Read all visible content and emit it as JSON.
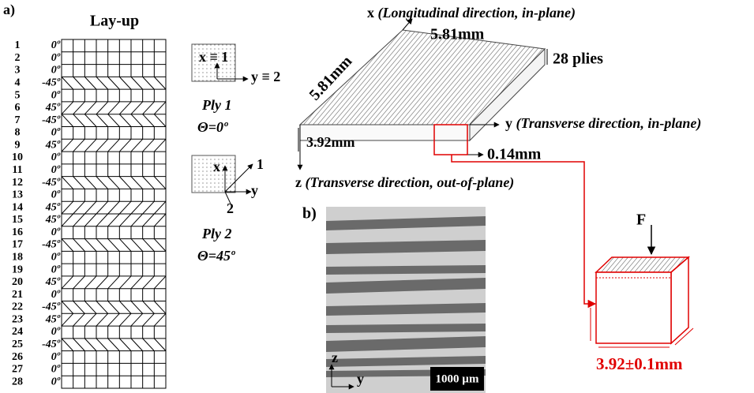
{
  "panel_a": {
    "label": "a)",
    "layup_title": "Lay-up",
    "plies": [
      {
        "number": "1",
        "angle": "0º"
      },
      {
        "number": "2",
        "angle": "0º"
      },
      {
        "number": "3",
        "angle": "0º"
      },
      {
        "number": "4",
        "angle": "-45º"
      },
      {
        "number": "5",
        "angle": "0º"
      },
      {
        "number": "6",
        "angle": "45º"
      },
      {
        "number": "7",
        "angle": "-45º"
      },
      {
        "number": "8",
        "angle": "0º"
      },
      {
        "number": "9",
        "angle": "45º"
      },
      {
        "number": "10",
        "angle": "0º"
      },
      {
        "number": "11",
        "angle": "0º"
      },
      {
        "number": "12",
        "angle": "-45º"
      },
      {
        "number": "13",
        "angle": "0º"
      },
      {
        "number": "14",
        "angle": "45º"
      },
      {
        "number": "15",
        "angle": "45º"
      },
      {
        "number": "16",
        "angle": "0º"
      },
      {
        "number": "17",
        "angle": "-45º"
      },
      {
        "number": "18",
        "angle": "0º"
      },
      {
        "number": "19",
        "angle": "0º"
      },
      {
        "number": "20",
        "angle": "45º"
      },
      {
        "number": "21",
        "angle": "0º"
      },
      {
        "number": "22",
        "angle": "-45º"
      },
      {
        "number": "23",
        "angle": "45º"
      },
      {
        "number": "24",
        "angle": "0º"
      },
      {
        "number": "25",
        "angle": "-45º"
      },
      {
        "number": "26",
        "angle": "0º"
      },
      {
        "number": "27",
        "angle": "0º"
      },
      {
        "number": "28",
        "angle": "0º"
      }
    ],
    "ply1": {
      "x_axis": "x ≡ 1",
      "y_axis": "y ≡ 2",
      "name": "Ply 1",
      "angle": "Θ=0º"
    },
    "ply2": {
      "x_axis": "x",
      "axis_1": "1",
      "y_axis": "y",
      "axis_2": "2",
      "name": "Ply 2",
      "angle": "Θ=45º"
    },
    "specimen": {
      "x_axis": "x",
      "x_desc": "(Longitudinal direction, in-plane)",
      "y_axis": "y",
      "y_desc": "(Transverse direction, in-plane)",
      "z_axis": "z",
      "z_desc": "(Transverse direction, out-of-plane)",
      "length": "5.81mm",
      "width": "5.81mm",
      "plies": "28 plies",
      "thickness": "3.92mm",
      "ply_thickness": "0.14mm"
    }
  },
  "panel_b": {
    "label": "b)",
    "z_axis": "z",
    "y_axis": "y",
    "scale_bar": "1000 µm"
  },
  "sample": {
    "force": "F",
    "size": "3.92±0.1mm"
  }
}
